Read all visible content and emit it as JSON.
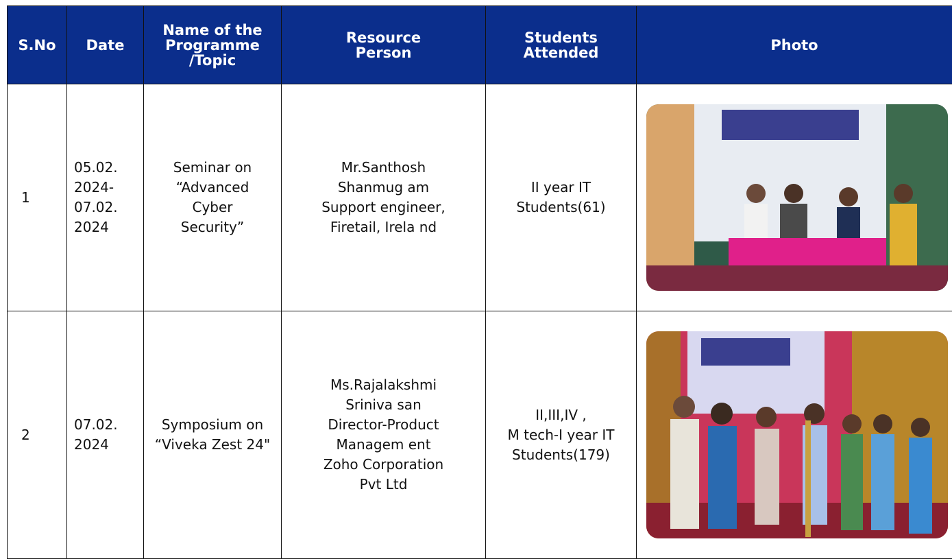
{
  "table": {
    "headers": [
      "S.No",
      "Date",
      "Name of the\nProgramme\n/Topic",
      "Resource\nPerson",
      "Students\nAttended",
      "Photo"
    ],
    "rows": [
      [
        "1",
        "05.02.\n2024-\n07.02.\n2024",
        "Seminar on\n“Advanced\nCyber\nSecurity”",
        "Mr.Santhosh\nShanmug am\nSupport engineer,\nFiretail, Irela nd",
        "II year IT\nStudents(61)"
      ],
      [
        "2",
        "07.02.\n2024",
        "Symposium on\n“Viveka Zest 24\"",
        "Ms.Rajalakshmi\nSriniva san\nDirector-Product\nManagem ent\nZoho Corporation\nPvt Ltd",
        "II,III,IV ,\nM tech-I year IT\nStudents(179)"
      ]
    ]
  }
}
